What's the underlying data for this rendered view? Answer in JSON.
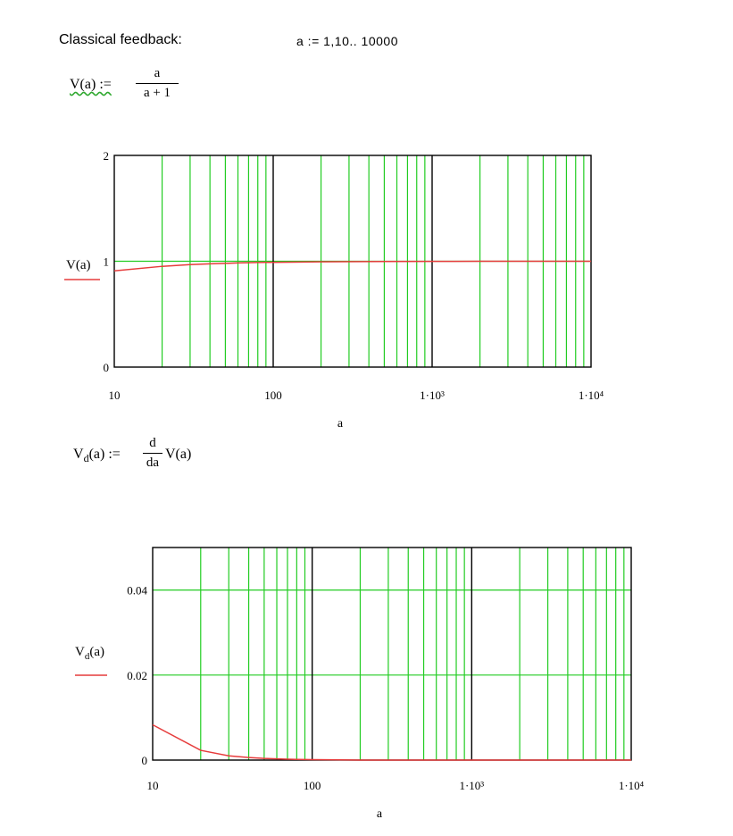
{
  "worksheet": {
    "heading": "Classical feedback:",
    "range_def": "a := 1,10.. 10000",
    "def1": {
      "lhs": "V(a) :=",
      "num": "a",
      "den": "a + 1"
    },
    "def2": {
      "lhs_main": "V",
      "lhs_sub": "d",
      "lhs_arg": "(a) :=",
      "num": "d",
      "den": "da",
      "rhs": "V(a)"
    }
  },
  "colors": {
    "grid_minor": "#22cc22",
    "grid_major": "#000000",
    "trace": "#e63b3b",
    "frame": "#000000"
  },
  "chart_data": [
    {
      "type": "line",
      "title": "",
      "xlabel": "a",
      "ylabel": "V(a)",
      "x_scale": "log",
      "xlim": [
        10,
        10000
      ],
      "ylim": [
        0,
        2
      ],
      "x_ticks": [
        10,
        100,
        1000,
        10000
      ],
      "x_tick_labels": [
        "10",
        "100",
        "1·10³",
        "1·10⁴"
      ],
      "y_ticks": [
        0,
        1,
        2
      ],
      "y_tick_labels": [
        "0",
        "1",
        "2"
      ],
      "grid": true,
      "series": [
        {
          "name": "V(a)",
          "x": [
            10,
            20,
            30,
            40,
            50,
            60,
            70,
            80,
            90,
            100,
            200,
            500,
            1000,
            2000,
            5000,
            10000
          ],
          "y": [
            0.909,
            0.952,
            0.968,
            0.976,
            0.98,
            0.984,
            0.986,
            0.988,
            0.989,
            0.99,
            0.995,
            0.998,
            0.999,
            1.0,
            1.0,
            1.0
          ]
        }
      ]
    },
    {
      "type": "line",
      "title": "",
      "xlabel": "a",
      "ylabel": "Vd(a)",
      "x_scale": "log",
      "xlim": [
        10,
        10000
      ],
      "ylim": [
        0,
        0.05
      ],
      "x_ticks": [
        10,
        100,
        1000,
        10000
      ],
      "x_tick_labels": [
        "10",
        "100",
        "1·10³",
        "1·10⁴"
      ],
      "y_ticks": [
        0,
        0.02,
        0.04
      ],
      "y_tick_labels": [
        "0",
        "0.02",
        "0.04"
      ],
      "grid": true,
      "series": [
        {
          "name": "Vd(a)",
          "x": [
            10,
            20,
            30,
            40,
            50,
            60,
            70,
            80,
            90,
            100,
            200,
            500,
            1000,
            2000,
            5000,
            10000
          ],
          "y": [
            0.0083,
            0.0023,
            0.001,
            0.0006,
            0.0004,
            0.0003,
            0.0002,
            0.00015,
            0.00012,
            0.0001,
            0.0,
            0.0,
            0.0,
            0.0,
            0.0,
            0.0
          ]
        }
      ]
    }
  ]
}
